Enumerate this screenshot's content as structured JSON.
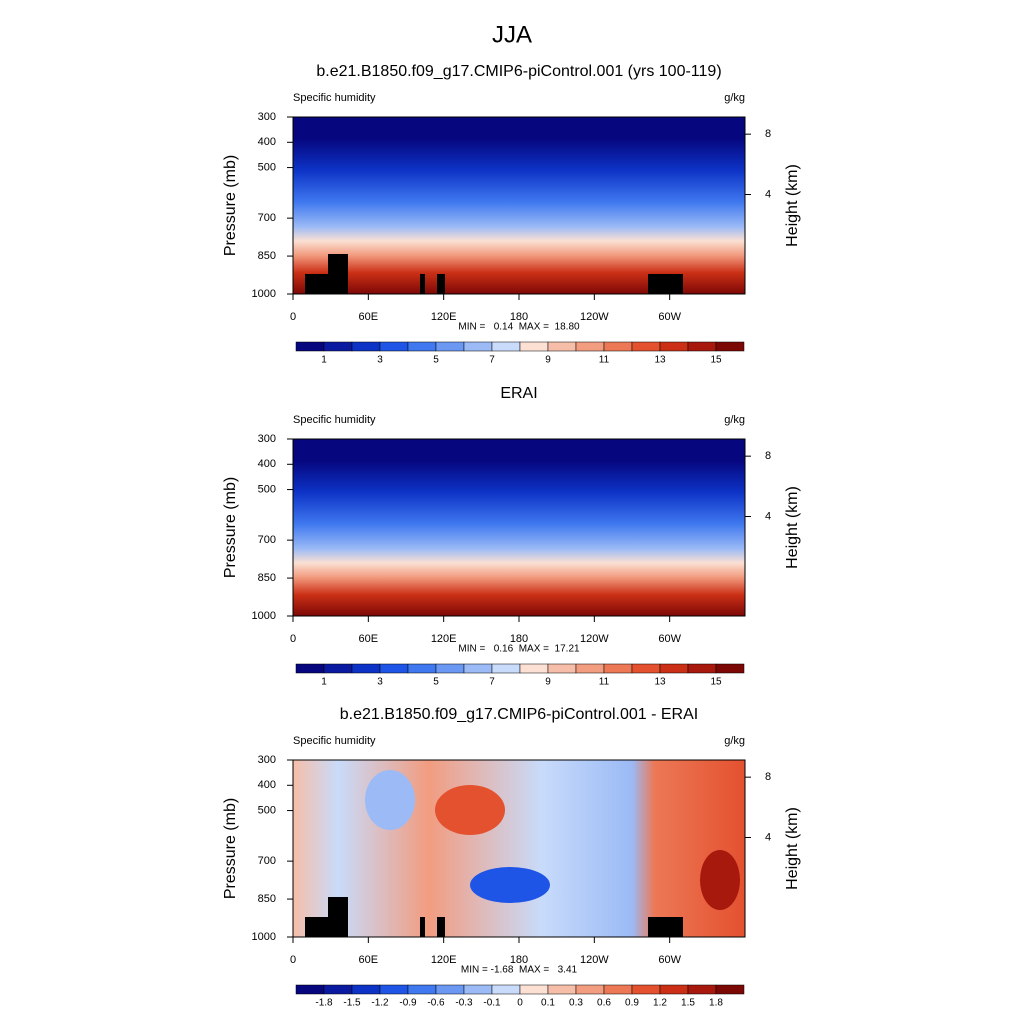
{
  "figure_title": "JJA",
  "chart_data": [
    {
      "type": "contour",
      "title": "b.e21.B1850.f09_g17.CMIP6-piControl.001 (yrs 100-119)",
      "left_label": "Specific humidity",
      "right_label": "g/kg",
      "ylabel": "Pressure (mb)",
      "y2label": "Height (km)",
      "xlim": [
        0,
        360
      ],
      "xticks": [
        0,
        {
          "value": 60,
          "label": "60E"
        },
        {
          "value": 120,
          "label": "120E"
        },
        180,
        {
          "value": 240,
          "label": "120W"
        },
        {
          "value": 300,
          "label": "60W"
        }
      ],
      "ylim": [
        1000,
        300
      ],
      "yticks": [
        300,
        400,
        500,
        700,
        850,
        1000
      ],
      "y2ticks": [
        8,
        4
      ],
      "stats": "MIN =   0.14  MAX =  18.80",
      "levels": [
        1,
        3,
        5,
        7,
        9,
        11,
        13,
        15
      ],
      "colors": [
        "#06067e",
        "#0a1aa0",
        "#0d33c6",
        "#1e55e6",
        "#3f78ef",
        "#6a98f3",
        "#9bbaf6",
        "#c8dbfa",
        "#fbe0d3",
        "#f6bea8",
        "#f29c80",
        "#ec7856",
        "#e4512f",
        "#cb3016",
        "#a8190d",
        "#7c0806"
      ]
    },
    {
      "type": "contour",
      "title": "ERAI",
      "left_label": "Specific humidity",
      "right_label": "g/kg",
      "ylabel": "Pressure (mb)",
      "y2label": "Height (km)",
      "xlim": [
        0,
        360
      ],
      "xticks": [
        0,
        {
          "value": 60,
          "label": "60E"
        },
        {
          "value": 120,
          "label": "120E"
        },
        180,
        {
          "value": 240,
          "label": "120W"
        },
        {
          "value": 300,
          "label": "60W"
        }
      ],
      "ylim": [
        1000,
        300
      ],
      "yticks": [
        300,
        400,
        500,
        700,
        850,
        1000
      ],
      "y2ticks": [
        8,
        4
      ],
      "stats": "MIN =   0.16  MAX =  17.21",
      "levels": [
        1,
        3,
        5,
        7,
        9,
        11,
        13,
        15
      ],
      "colors": [
        "#06067e",
        "#0a1aa0",
        "#0d33c6",
        "#1e55e6",
        "#3f78ef",
        "#6a98f3",
        "#9bbaf6",
        "#c8dbfa",
        "#fbe0d3",
        "#f6bea8",
        "#f29c80",
        "#ec7856",
        "#e4512f",
        "#cb3016",
        "#a8190d",
        "#7c0806"
      ]
    },
    {
      "type": "contour",
      "title": "b.e21.B1850.f09_g17.CMIP6-piControl.001 - ERAI",
      "left_label": "Specific humidity",
      "right_label": "g/kg",
      "ylabel": "Pressure (mb)",
      "y2label": "Height (km)",
      "xlim": [
        0,
        360
      ],
      "xticks": [
        0,
        {
          "value": 60,
          "label": "60E"
        },
        {
          "value": 120,
          "label": "120E"
        },
        180,
        {
          "value": 240,
          "label": "120W"
        },
        {
          "value": 300,
          "label": "60W"
        }
      ],
      "ylim": [
        1000,
        300
      ],
      "yticks": [
        300,
        400,
        500,
        700,
        850,
        1000
      ],
      "y2ticks": [
        8,
        4
      ],
      "stats": "MIN = -1.68  MAX =   3.41",
      "levels": [
        -1.8,
        -1.5,
        -1.2,
        -0.9,
        -0.6,
        -0.3,
        -0.1,
        0,
        0.1,
        0.3,
        0.6,
        0.9,
        1.2,
        1.5,
        1.8
      ],
      "colors": [
        "#06067e",
        "#0a1aa0",
        "#0d33c6",
        "#1e55e6",
        "#3f78ef",
        "#6a98f3",
        "#9bbaf6",
        "#c8dbfa",
        "#fbe0d3",
        "#f6bea8",
        "#f29c80",
        "#ec7856",
        "#e4512f",
        "#cb3016",
        "#a8190d",
        "#7c0806"
      ]
    }
  ]
}
